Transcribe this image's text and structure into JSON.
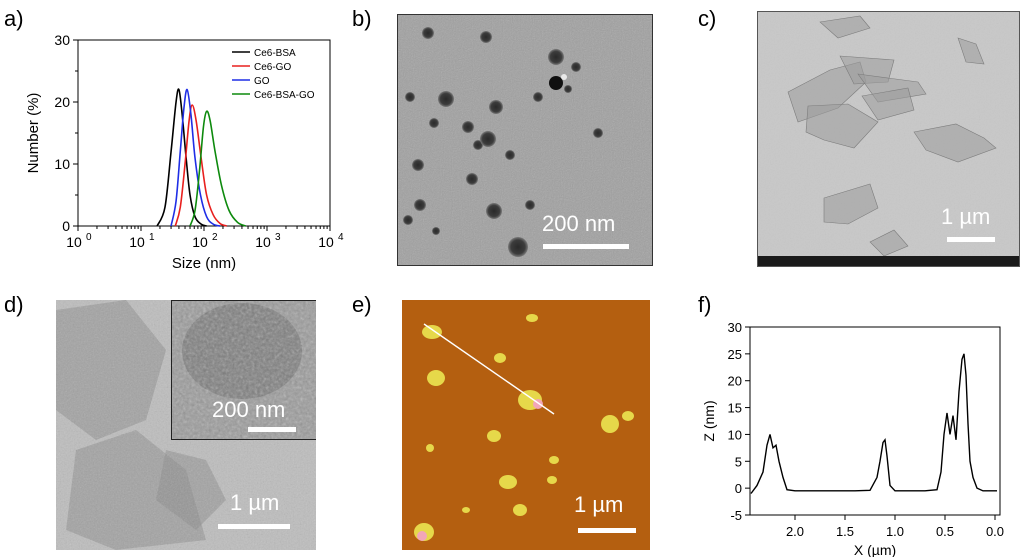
{
  "panels": {
    "a": {
      "letter": "a)"
    },
    "b": {
      "letter": "b)",
      "scale_label": "200 nm"
    },
    "c": {
      "letter": "c)",
      "scale_label": "1 µm"
    },
    "d": {
      "letter": "d)",
      "scale_label": "1 µm",
      "inset_scale_label": "200 nm"
    },
    "e": {
      "letter": "e)",
      "scale_label": "1 µm"
    },
    "f": {
      "letter": "f)"
    }
  },
  "colors": {
    "black": "#000000",
    "red": "#e8201e",
    "blue": "#1f2ee6",
    "green": "#0d8a0d",
    "afm_bg": "#b45f10",
    "afm_particle": "#e6d84a"
  },
  "chart_data": [
    {
      "type": "line",
      "panel": "a",
      "xlabel": "Size (nm)",
      "ylabel": "Number (%)",
      "xscale": "log",
      "xlim": [
        1,
        10000
      ],
      "ylim": [
        0,
        30
      ],
      "xticks": [
        1,
        10,
        100,
        1000,
        10000
      ],
      "xtick_labels": [
        "10",
        "10",
        "10",
        "10",
        "10"
      ],
      "xtick_exponents": [
        "0",
        "1",
        "2",
        "3",
        "4"
      ],
      "yticks": [
        0,
        10,
        20,
        30
      ],
      "ytick_labels": [
        "0",
        "10",
        "20",
        "30"
      ],
      "legend_position": "top-right",
      "series": [
        {
          "name": "Ce6-BSA",
          "color": "#000000",
          "x": [
            18,
            24,
            30,
            36,
            40,
            45,
            52,
            60,
            72,
            90,
            110
          ],
          "y": [
            0,
            3,
            12,
            20,
            22,
            18,
            11,
            5,
            1.5,
            0.3,
            0
          ]
        },
        {
          "name": "Ce6-GO",
          "color": "#e8201e",
          "x": [
            35,
            42,
            50,
            58,
            65,
            75,
            90,
            110,
            140,
            180,
            230
          ],
          "y": [
            0,
            3,
            10,
            17,
            19.5,
            17,
            11,
            5,
            1.8,
            0.4,
            0
          ]
        },
        {
          "name": "GO",
          "color": "#1f2ee6",
          "x": [
            30,
            36,
            42,
            48,
            54,
            62,
            72,
            88,
            110,
            140,
            180
          ],
          "y": [
            0,
            4,
            12,
            19,
            22,
            18,
            11,
            5,
            1.5,
            0.3,
            0
          ]
        },
        {
          "name": "Ce6-BSA-GO",
          "color": "#0d8a0d",
          "x": [
            60,
            72,
            85,
            98,
            110,
            125,
            150,
            190,
            250,
            340,
            460
          ],
          "y": [
            0,
            2.5,
            9,
            16,
            18.5,
            17,
            12,
            6.5,
            2.5,
            0.6,
            0
          ]
        }
      ]
    },
    {
      "type": "line",
      "panel": "f",
      "xlabel": "X (µm)",
      "ylabel": "Z (nm)",
      "xlim": [
        2.45,
        -0.05
      ],
      "ylim": [
        -5,
        30
      ],
      "xticks": [
        2.0,
        1.5,
        1.0,
        0.5,
        0.0
      ],
      "xtick_labels": [
        "2.0",
        "1.5",
        "1.0",
        "0.5",
        "0.0"
      ],
      "yticks": [
        -5,
        0,
        5,
        10,
        15,
        20,
        25,
        30
      ],
      "ytick_labels": [
        "-5",
        "0",
        "5",
        "10",
        "15",
        "20",
        "25",
        "30"
      ],
      "series": [
        {
          "name": "",
          "color": "#000000",
          "x": [
            2.44,
            2.38,
            2.32,
            2.28,
            2.25,
            2.22,
            2.19,
            2.16,
            2.12,
            2.08,
            2.0,
            1.8,
            1.6,
            1.4,
            1.25,
            1.18,
            1.15,
            1.12,
            1.1,
            1.08,
            1.05,
            1.0,
            0.85,
            0.7,
            0.58,
            0.54,
            0.51,
            0.48,
            0.45,
            0.42,
            0.39,
            0.36,
            0.33,
            0.31,
            0.29,
            0.27,
            0.25,
            0.22,
            0.18,
            0.12,
            0.05,
            -0.02
          ],
          "y": [
            -1,
            0.5,
            3,
            8,
            10,
            7.5,
            8,
            5,
            2,
            -0.3,
            -0.5,
            -0.5,
            -0.5,
            -0.5,
            -0.4,
            2,
            5,
            8.5,
            9,
            6,
            0.5,
            -0.5,
            -0.5,
            -0.5,
            -0.3,
            3,
            10,
            14,
            10,
            13.5,
            9,
            18,
            24,
            25,
            21,
            12,
            5,
            2,
            0,
            -0.5,
            -0.5,
            -0.5
          ]
        }
      ]
    }
  ]
}
